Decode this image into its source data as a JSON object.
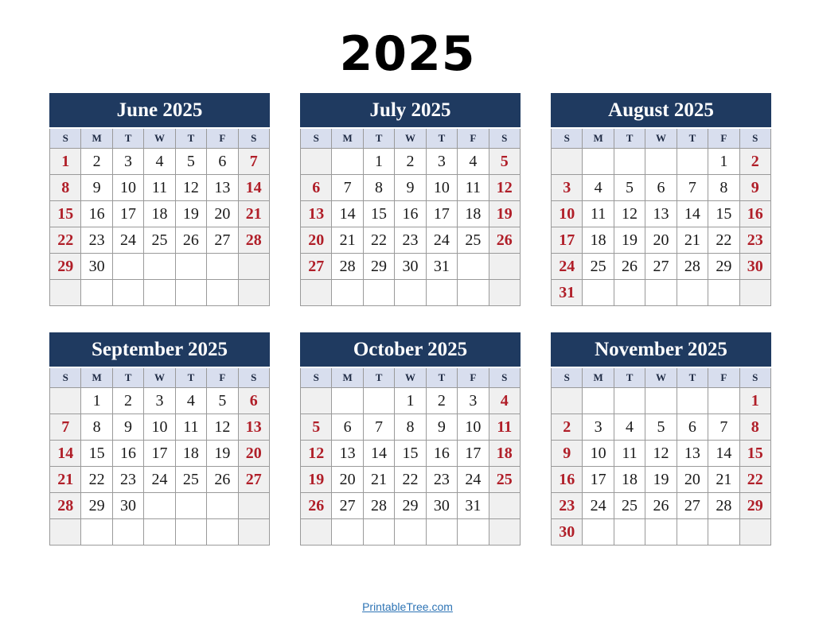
{
  "page": {
    "title": "2025"
  },
  "weekday_headers": [
    "S",
    "M",
    "T",
    "W",
    "T",
    "F",
    "S"
  ],
  "months": [
    {
      "name": "June 2025",
      "weeks": [
        [
          "1",
          "2",
          "3",
          "4",
          "5",
          "6",
          "7"
        ],
        [
          "8",
          "9",
          "10",
          "11",
          "12",
          "13",
          "14"
        ],
        [
          "15",
          "16",
          "17",
          "18",
          "19",
          "20",
          "21"
        ],
        [
          "22",
          "23",
          "24",
          "25",
          "26",
          "27",
          "28"
        ],
        [
          "29",
          "30",
          "",
          "",
          "",
          "",
          ""
        ],
        [
          "",
          "",
          "",
          "",
          "",
          "",
          ""
        ]
      ]
    },
    {
      "name": "July 2025",
      "weeks": [
        [
          "",
          "",
          "1",
          "2",
          "3",
          "4",
          "5"
        ],
        [
          "6",
          "7",
          "8",
          "9",
          "10",
          "11",
          "12"
        ],
        [
          "13",
          "14",
          "15",
          "16",
          "17",
          "18",
          "19"
        ],
        [
          "20",
          "21",
          "22",
          "23",
          "24",
          "25",
          "26"
        ],
        [
          "27",
          "28",
          "29",
          "30",
          "31",
          "",
          ""
        ],
        [
          "",
          "",
          "",
          "",
          "",
          "",
          ""
        ]
      ]
    },
    {
      "name": "August 2025",
      "weeks": [
        [
          "",
          "",
          "",
          "",
          "",
          "1",
          "2"
        ],
        [
          "3",
          "4",
          "5",
          "6",
          "7",
          "8",
          "9"
        ],
        [
          "10",
          "11",
          "12",
          "13",
          "14",
          "15",
          "16"
        ],
        [
          "17",
          "18",
          "19",
          "20",
          "21",
          "22",
          "23"
        ],
        [
          "24",
          "25",
          "26",
          "27",
          "28",
          "29",
          "30"
        ],
        [
          "31",
          "",
          "",
          "",
          "",
          "",
          ""
        ]
      ]
    },
    {
      "name": "September 2025",
      "weeks": [
        [
          "",
          "1",
          "2",
          "3",
          "4",
          "5",
          "6"
        ],
        [
          "7",
          "8",
          "9",
          "10",
          "11",
          "12",
          "13"
        ],
        [
          "14",
          "15",
          "16",
          "17",
          "18",
          "19",
          "20"
        ],
        [
          "21",
          "22",
          "23",
          "24",
          "25",
          "26",
          "27"
        ],
        [
          "28",
          "29",
          "30",
          "",
          "",
          "",
          ""
        ],
        [
          "",
          "",
          "",
          "",
          "",
          "",
          ""
        ]
      ]
    },
    {
      "name": "October 2025",
      "weeks": [
        [
          "",
          "",
          "",
          "1",
          "2",
          "3",
          "4"
        ],
        [
          "5",
          "6",
          "7",
          "8",
          "9",
          "10",
          "11"
        ],
        [
          "12",
          "13",
          "14",
          "15",
          "16",
          "17",
          "18"
        ],
        [
          "19",
          "20",
          "21",
          "22",
          "23",
          "24",
          "25"
        ],
        [
          "26",
          "27",
          "28",
          "29",
          "30",
          "31",
          ""
        ],
        [
          "",
          "",
          "",
          "",
          "",
          "",
          ""
        ]
      ]
    },
    {
      "name": "November 2025",
      "weeks": [
        [
          "",
          "",
          "",
          "",
          "",
          "",
          "1"
        ],
        [
          "2",
          "3",
          "4",
          "5",
          "6",
          "7",
          "8"
        ],
        [
          "9",
          "10",
          "11",
          "12",
          "13",
          "14",
          "15"
        ],
        [
          "16",
          "17",
          "18",
          "19",
          "20",
          "21",
          "22"
        ],
        [
          "23",
          "24",
          "25",
          "26",
          "27",
          "28",
          "29"
        ],
        [
          "30",
          "",
          "",
          "",
          "",
          "",
          ""
        ]
      ]
    }
  ],
  "footer": {
    "link_label": "PrintableTree.com"
  },
  "colors": {
    "header_bg": "#1f3a60",
    "header_text": "#ffffff",
    "weekday_row_bg": "#d8deee",
    "weekday_text": "#1f2b44",
    "weekend_cell_bg": "#f0f0f0",
    "weekend_text": "#b01e28",
    "cell_bg": "#ffffff",
    "date_text": "#1a1a1a",
    "grid_border": "#9a9a9a",
    "title_text": "#000000",
    "link_color": "#2e74b5"
  }
}
